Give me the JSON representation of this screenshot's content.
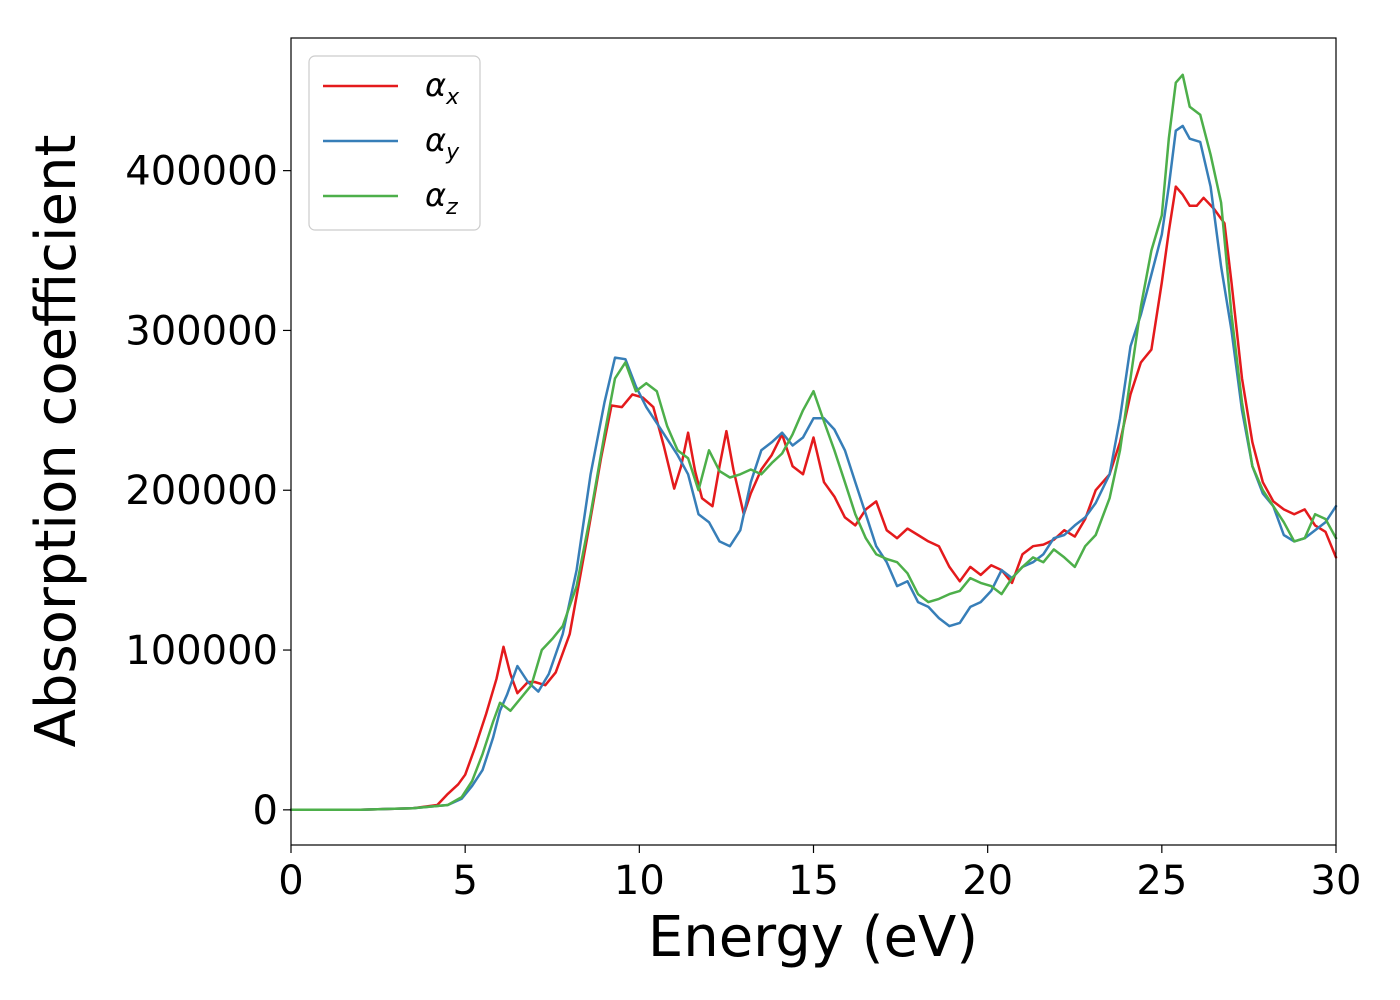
{
  "chart_data": {
    "type": "line",
    "title": "",
    "xlabel": "Energy (eV)",
    "ylabel": "Absorption coefficient",
    "xlim": [
      0,
      30
    ],
    "ylim": [
      -22000,
      483000
    ],
    "xticks": [
      0,
      5,
      10,
      15,
      20,
      25,
      30
    ],
    "yticks": [
      0,
      100000,
      200000,
      300000,
      400000
    ],
    "grid": false,
    "legend_position": "top-left",
    "series": [
      {
        "name": "α",
        "name_sub": "x",
        "color": "#e41a1c",
        "points": [
          [
            0,
            0
          ],
          [
            2,
            0
          ],
          [
            3.5,
            1000
          ],
          [
            4.2,
            3000
          ],
          [
            4.5,
            10000
          ],
          [
            4.8,
            16000
          ],
          [
            5.0,
            22000
          ],
          [
            5.3,
            40000
          ],
          [
            5.6,
            60000
          ],
          [
            5.9,
            82000
          ],
          [
            6.1,
            102000
          ],
          [
            6.3,
            85000
          ],
          [
            6.5,
            73000
          ],
          [
            6.8,
            80000
          ],
          [
            7.0,
            80000
          ],
          [
            7.3,
            78000
          ],
          [
            7.6,
            86000
          ],
          [
            8.0,
            110000
          ],
          [
            8.5,
            170000
          ],
          [
            8.9,
            220000
          ],
          [
            9.2,
            253000
          ],
          [
            9.5,
            252000
          ],
          [
            9.8,
            260000
          ],
          [
            10.1,
            258000
          ],
          [
            10.4,
            252000
          ],
          [
            10.7,
            228000
          ],
          [
            11.0,
            201000
          ],
          [
            11.2,
            215000
          ],
          [
            11.4,
            236000
          ],
          [
            11.6,
            212000
          ],
          [
            11.8,
            195000
          ],
          [
            12.1,
            190000
          ],
          [
            12.3,
            215000
          ],
          [
            12.5,
            237000
          ],
          [
            12.7,
            213000
          ],
          [
            13.0,
            185000
          ],
          [
            13.2,
            198000
          ],
          [
            13.5,
            213000
          ],
          [
            13.8,
            222000
          ],
          [
            14.1,
            235000
          ],
          [
            14.4,
            215000
          ],
          [
            14.7,
            210000
          ],
          [
            15.0,
            233000
          ],
          [
            15.3,
            205000
          ],
          [
            15.6,
            196000
          ],
          [
            15.9,
            183000
          ],
          [
            16.2,
            178000
          ],
          [
            16.5,
            188000
          ],
          [
            16.8,
            193000
          ],
          [
            17.1,
            175000
          ],
          [
            17.4,
            170000
          ],
          [
            17.7,
            176000
          ],
          [
            18.0,
            172000
          ],
          [
            18.3,
            168000
          ],
          [
            18.6,
            165000
          ],
          [
            18.9,
            152000
          ],
          [
            19.2,
            143000
          ],
          [
            19.5,
            152000
          ],
          [
            19.8,
            147000
          ],
          [
            20.1,
            153000
          ],
          [
            20.4,
            150000
          ],
          [
            20.7,
            142000
          ],
          [
            21.0,
            160000
          ],
          [
            21.3,
            165000
          ],
          [
            21.6,
            166000
          ],
          [
            21.9,
            169000
          ],
          [
            22.2,
            175000
          ],
          [
            22.5,
            171000
          ],
          [
            22.8,
            182000
          ],
          [
            23.1,
            200000
          ],
          [
            23.5,
            210000
          ],
          [
            23.8,
            230000
          ],
          [
            24.1,
            260000
          ],
          [
            24.4,
            280000
          ],
          [
            24.7,
            288000
          ],
          [
            25.0,
            330000
          ],
          [
            25.2,
            362000
          ],
          [
            25.4,
            390000
          ],
          [
            25.6,
            385000
          ],
          [
            25.8,
            378000
          ],
          [
            26.0,
            378000
          ],
          [
            26.2,
            383000
          ],
          [
            26.5,
            376000
          ],
          [
            26.8,
            367000
          ],
          [
            27.0,
            330000
          ],
          [
            27.3,
            270000
          ],
          [
            27.6,
            230000
          ],
          [
            27.9,
            205000
          ],
          [
            28.2,
            193000
          ],
          [
            28.5,
            188000
          ],
          [
            28.8,
            185000
          ],
          [
            29.1,
            188000
          ],
          [
            29.4,
            178000
          ],
          [
            29.7,
            174000
          ],
          [
            30.0,
            158000
          ]
        ]
      },
      {
        "name": "α",
        "name_sub": "y",
        "color": "#377eb8",
        "points": [
          [
            0,
            0
          ],
          [
            2,
            0
          ],
          [
            3.5,
            1000
          ],
          [
            4.5,
            3000
          ],
          [
            4.9,
            7000
          ],
          [
            5.2,
            15000
          ],
          [
            5.5,
            25000
          ],
          [
            5.8,
            45000
          ],
          [
            6.0,
            62000
          ],
          [
            6.2,
            72000
          ],
          [
            6.5,
            90000
          ],
          [
            6.8,
            80000
          ],
          [
            7.1,
            74000
          ],
          [
            7.4,
            85000
          ],
          [
            7.8,
            110000
          ],
          [
            8.2,
            150000
          ],
          [
            8.6,
            210000
          ],
          [
            9.0,
            255000
          ],
          [
            9.3,
            283000
          ],
          [
            9.6,
            282000
          ],
          [
            9.9,
            265000
          ],
          [
            10.2,
            252000
          ],
          [
            10.5,
            242000
          ],
          [
            10.8,
            232000
          ],
          [
            11.1,
            222000
          ],
          [
            11.4,
            210000
          ],
          [
            11.7,
            185000
          ],
          [
            12.0,
            180000
          ],
          [
            12.3,
            168000
          ],
          [
            12.6,
            165000
          ],
          [
            12.9,
            175000
          ],
          [
            13.2,
            205000
          ],
          [
            13.5,
            225000
          ],
          [
            13.8,
            230000
          ],
          [
            14.1,
            236000
          ],
          [
            14.4,
            228000
          ],
          [
            14.7,
            233000
          ],
          [
            15.0,
            245000
          ],
          [
            15.3,
            245000
          ],
          [
            15.6,
            238000
          ],
          [
            15.9,
            225000
          ],
          [
            16.2,
            205000
          ],
          [
            16.5,
            185000
          ],
          [
            16.8,
            165000
          ],
          [
            17.1,
            155000
          ],
          [
            17.4,
            140000
          ],
          [
            17.7,
            143000
          ],
          [
            18.0,
            130000
          ],
          [
            18.3,
            127000
          ],
          [
            18.6,
            120000
          ],
          [
            18.9,
            115000
          ],
          [
            19.2,
            117000
          ],
          [
            19.5,
            127000
          ],
          [
            19.8,
            130000
          ],
          [
            20.1,
            137000
          ],
          [
            20.4,
            150000
          ],
          [
            20.7,
            145000
          ],
          [
            21.0,
            152000
          ],
          [
            21.3,
            155000
          ],
          [
            21.6,
            160000
          ],
          [
            21.9,
            170000
          ],
          [
            22.2,
            172000
          ],
          [
            22.5,
            178000
          ],
          [
            22.8,
            183000
          ],
          [
            23.1,
            192000
          ],
          [
            23.5,
            210000
          ],
          [
            23.8,
            245000
          ],
          [
            24.1,
            290000
          ],
          [
            24.4,
            310000
          ],
          [
            24.7,
            335000
          ],
          [
            25.0,
            360000
          ],
          [
            25.2,
            390000
          ],
          [
            25.4,
            425000
          ],
          [
            25.6,
            428000
          ],
          [
            25.8,
            420000
          ],
          [
            26.1,
            418000
          ],
          [
            26.4,
            390000
          ],
          [
            26.7,
            340000
          ],
          [
            27.0,
            300000
          ],
          [
            27.3,
            250000
          ],
          [
            27.6,
            215000
          ],
          [
            27.9,
            198000
          ],
          [
            28.2,
            190000
          ],
          [
            28.5,
            172000
          ],
          [
            28.8,
            168000
          ],
          [
            29.1,
            170000
          ],
          [
            29.4,
            175000
          ],
          [
            29.7,
            180000
          ],
          [
            30.0,
            190000
          ]
        ]
      },
      {
        "name": "α",
        "name_sub": "z",
        "color": "#4daf4a",
        "points": [
          [
            0,
            0
          ],
          [
            2,
            0
          ],
          [
            3.5,
            1000
          ],
          [
            4.5,
            3000
          ],
          [
            4.9,
            8000
          ],
          [
            5.2,
            18000
          ],
          [
            5.5,
            35000
          ],
          [
            5.8,
            55000
          ],
          [
            6.0,
            67000
          ],
          [
            6.3,
            62000
          ],
          [
            6.6,
            70000
          ],
          [
            6.9,
            78000
          ],
          [
            7.2,
            100000
          ],
          [
            7.5,
            107000
          ],
          [
            7.8,
            115000
          ],
          [
            8.2,
            140000
          ],
          [
            8.6,
            185000
          ],
          [
            9.0,
            235000
          ],
          [
            9.3,
            270000
          ],
          [
            9.6,
            280000
          ],
          [
            9.9,
            262000
          ],
          [
            10.2,
            267000
          ],
          [
            10.5,
            262000
          ],
          [
            10.8,
            240000
          ],
          [
            11.1,
            225000
          ],
          [
            11.4,
            220000
          ],
          [
            11.7,
            200000
          ],
          [
            12.0,
            225000
          ],
          [
            12.3,
            212000
          ],
          [
            12.6,
            208000
          ],
          [
            12.9,
            210000
          ],
          [
            13.2,
            213000
          ],
          [
            13.5,
            210000
          ],
          [
            13.8,
            217000
          ],
          [
            14.1,
            223000
          ],
          [
            14.4,
            235000
          ],
          [
            14.7,
            250000
          ],
          [
            15.0,
            262000
          ],
          [
            15.3,
            243000
          ],
          [
            15.6,
            225000
          ],
          [
            15.9,
            205000
          ],
          [
            16.2,
            185000
          ],
          [
            16.5,
            170000
          ],
          [
            16.8,
            160000
          ],
          [
            17.1,
            157000
          ],
          [
            17.4,
            155000
          ],
          [
            17.7,
            148000
          ],
          [
            18.0,
            135000
          ],
          [
            18.3,
            130000
          ],
          [
            18.6,
            132000
          ],
          [
            18.9,
            135000
          ],
          [
            19.2,
            137000
          ],
          [
            19.5,
            145000
          ],
          [
            19.8,
            142000
          ],
          [
            20.1,
            140000
          ],
          [
            20.4,
            135000
          ],
          [
            20.7,
            145000
          ],
          [
            21.0,
            152000
          ],
          [
            21.3,
            158000
          ],
          [
            21.6,
            155000
          ],
          [
            21.9,
            163000
          ],
          [
            22.2,
            158000
          ],
          [
            22.5,
            152000
          ],
          [
            22.8,
            165000
          ],
          [
            23.1,
            172000
          ],
          [
            23.5,
            195000
          ],
          [
            23.8,
            225000
          ],
          [
            24.1,
            270000
          ],
          [
            24.4,
            315000
          ],
          [
            24.7,
            350000
          ],
          [
            25.0,
            372000
          ],
          [
            25.2,
            420000
          ],
          [
            25.4,
            455000
          ],
          [
            25.6,
            460000
          ],
          [
            25.8,
            440000
          ],
          [
            26.1,
            435000
          ],
          [
            26.4,
            410000
          ],
          [
            26.7,
            380000
          ],
          [
            27.0,
            310000
          ],
          [
            27.3,
            255000
          ],
          [
            27.6,
            215000
          ],
          [
            27.9,
            200000
          ],
          [
            28.2,
            190000
          ],
          [
            28.5,
            180000
          ],
          [
            28.8,
            168000
          ],
          [
            29.1,
            170000
          ],
          [
            29.4,
            185000
          ],
          [
            29.7,
            182000
          ],
          [
            30.0,
            170000
          ]
        ]
      }
    ]
  }
}
